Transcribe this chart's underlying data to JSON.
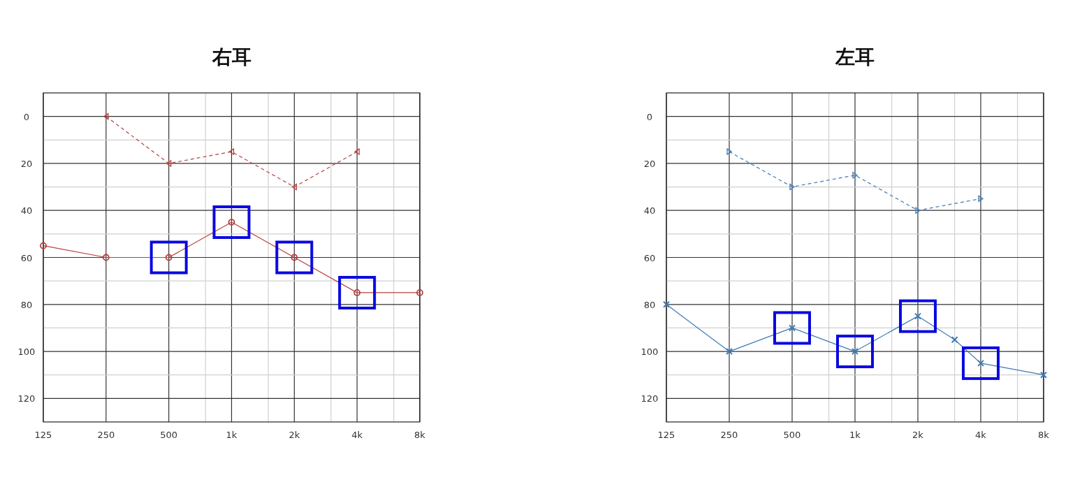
{
  "chart_data": [
    {
      "type": "line",
      "title": "右耳",
      "log": "x",
      "grid": true,
      "xlim": [
        125,
        8000
      ],
      "ylim": [
        130,
        -10
      ],
      "xticks": [
        125,
        250,
        500,
        {
          "value": 750,
          "label": null
        },
        {
          "value": 1000,
          "label": "1k"
        },
        {
          "value": 1500,
          "label": null
        },
        {
          "value": 2000,
          "label": "2k"
        },
        {
          "value": 3000,
          "label": null
        },
        {
          "value": 4000,
          "label": "4k"
        },
        {
          "value": 6000,
          "label": null
        },
        {
          "value": 8000,
          "label": "8k"
        }
      ],
      "yticks": [
        0,
        {
          "value": 10,
          "label": null
        },
        20,
        {
          "value": 30,
          "label": null
        },
        40,
        {
          "value": 50,
          "label": null
        },
        60,
        {
          "value": 70,
          "label": null
        },
        80,
        {
          "value": 90,
          "label": null
        },
        100,
        {
          "value": 110,
          "label": null
        },
        120
      ],
      "series": [
        {
          "color": "#b5413f",
          "marker": "circle",
          "line_style": "solid",
          "x": [
            125,
            250,
            500,
            1000,
            2000,
            4000,
            8000
          ],
          "values": [
            55,
            60,
            60,
            45,
            60,
            75,
            75
          ]
        },
        {
          "color": "#b5413f",
          "marker": "triangle",
          "line_style": "dashed",
          "x": [
            250,
            500,
            1000,
            2000,
            4000
          ],
          "values": [
            0,
            20,
            15,
            30,
            15
          ]
        }
      ]
    },
    {
      "type": "line",
      "title": "左耳",
      "log": "x",
      "grid": true,
      "xlim": [
        125,
        8000
      ],
      "ylim": [
        130,
        -10
      ],
      "xticks": [
        125,
        250,
        500,
        {
          "value": 750,
          "label": null
        },
        {
          "value": 1000,
          "label": "1k"
        },
        {
          "value": 1500,
          "label": null
        },
        {
          "value": 2000,
          "label": "2k"
        },
        {
          "value": 3000,
          "label": null
        },
        {
          "value": 4000,
          "label": "4k"
        },
        {
          "value": 6000,
          "label": null
        },
        {
          "value": 8000,
          "label": "8k"
        }
      ],
      "yticks": [
        0,
        {
          "value": 10,
          "label": null
        },
        20,
        {
          "value": 30,
          "label": null
        },
        40,
        {
          "value": 50,
          "label": null
        },
        60,
        {
          "value": 70,
          "label": null
        },
        80,
        {
          "value": 90,
          "label": null
        },
        100,
        {
          "value": 110,
          "label": null
        },
        120
      ],
      "series": [
        {
          "color": "#3d7ab5",
          "marker": "cross",
          "line_style": "solid",
          "x": [
            125,
            250,
            500,
            1000,
            2000,
            3000,
            4000,
            8000
          ],
          "values": [
            80,
            100,
            90,
            100,
            85,
            95,
            105,
            110
          ]
        },
        {
          "color": "#3d7ab5",
          "marker": "triangle",
          "line_style": "dashed",
          "x": [
            250,
            500,
            1000,
            2000,
            4000
          ],
          "values": [
            15,
            30,
            25,
            40,
            35
          ]
        }
      ]
    }
  ]
}
